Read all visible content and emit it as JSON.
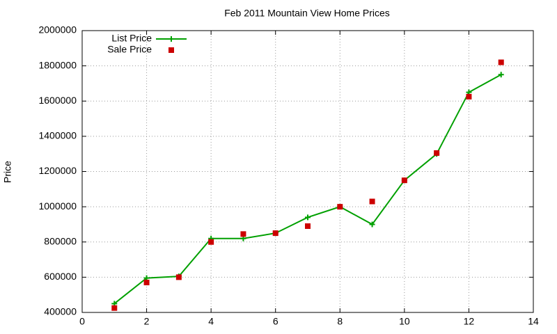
{
  "chart_data": {
    "type": "line",
    "title": "Feb 2011 Mountain View Home Prices",
    "y_label": "Price",
    "x": [
      1,
      2,
      3,
      4,
      5,
      6,
      7,
      8,
      9,
      10,
      11,
      12,
      13
    ],
    "series": [
      {
        "name": "List Price",
        "color": "#00a000",
        "style": "linespoints",
        "marker": "plus",
        "values": [
          450000,
          595000,
          605000,
          820000,
          820000,
          850000,
          940000,
          1000000,
          900000,
          1150000,
          1300000,
          1650000,
          1750000
        ]
      },
      {
        "name": "Sale Price",
        "color": "#cc0000",
        "style": "points",
        "marker": "square",
        "values": [
          425000,
          570000,
          600000,
          800000,
          845000,
          850000,
          890000,
          1000000,
          1030000,
          1150000,
          1305000,
          1625000,
          1820000
        ]
      }
    ],
    "xlim": [
      0,
      14
    ],
    "xticks": [
      0,
      2,
      4,
      6,
      8,
      10,
      12,
      14
    ],
    "ylim": [
      400000,
      2000000
    ],
    "yticks": [
      400000,
      600000,
      800000,
      1000000,
      1200000,
      1400000,
      1600000,
      1800000,
      2000000
    ],
    "grid": true,
    "legend": "top-left"
  }
}
